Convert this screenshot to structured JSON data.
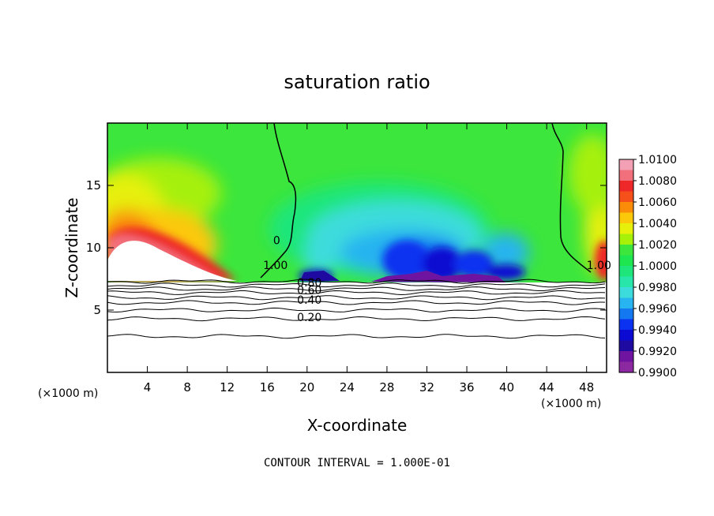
{
  "chart_data": {
    "type": "contour",
    "title": "saturation ratio",
    "xlabel": "X-coordinate",
    "ylabel": "Z-coordinate",
    "x_unit_label": "(×1000 m)",
    "x_unit_label_right": "(×1000 m)",
    "xlim": [
      0,
      50
    ],
    "ylim": [
      0,
      20
    ],
    "xticks": [
      "4",
      "8",
      "12",
      "16",
      "20",
      "24",
      "28",
      "32",
      "36",
      "40",
      "44",
      "48"
    ],
    "xtick_values": [
      4,
      8,
      12,
      16,
      20,
      24,
      28,
      32,
      36,
      40,
      44,
      48
    ],
    "yticks": [
      "5",
      "10",
      "15"
    ],
    "ytick_values": [
      5,
      10,
      15
    ],
    "note": "CONTOUR INTERVAL = 1.000E-01",
    "colorbar": {
      "labels": [
        "1.0100",
        "1.0080",
        "1.0060",
        "1.0040",
        "1.0020",
        "1.0000",
        "0.9980",
        "0.9960",
        "0.9940",
        "0.9920",
        "0.9900"
      ],
      "colors": [
        "#f4a0b4",
        "#f2707c",
        "#ee2828",
        "#f5501a",
        "#fa8c0a",
        "#fcc80a",
        "#e6f00a",
        "#a6f00a",
        "#3ce63c",
        "#1ee650",
        "#1ee67a",
        "#28e6aa",
        "#3cdcdc",
        "#28b4f0",
        "#1478f0",
        "#0a32f0",
        "#0a0ad2",
        "#1e0aa0",
        "#6e14a0",
        "#8c28a0"
      ]
    },
    "contour_labels": [
      {
        "text": "0",
        "x": 16.6,
        "y": 10.3
      },
      {
        "text": "1.00",
        "x": 15.6,
        "y": 8.3
      },
      {
        "text": "1.00",
        "x": 48.0,
        "y": 8.3
      },
      {
        "text": "0.80",
        "x": 19.0,
        "y": 6.9
      },
      {
        "text": "0.60",
        "x": 19.0,
        "y": 6.3
      },
      {
        "text": "0.40",
        "x": 19.0,
        "y": 5.5
      },
      {
        "text": "0.20",
        "x": 19.0,
        "y": 4.1
      }
    ],
    "contour_levels": [
      {
        "level": 0.9,
        "y": 7.3
      },
      {
        "level": 0.8,
        "y": 7.0
      },
      {
        "level": 0.7,
        "y": 6.7
      },
      {
        "level": 0.6,
        "y": 6.4
      },
      {
        "level": 0.5,
        "y": 6.0
      },
      {
        "level": 0.4,
        "y": 5.6
      },
      {
        "level": 0.3,
        "y": 5.0
      },
      {
        "level": 0.2,
        "y": 4.3
      },
      {
        "level": 0.1,
        "y": 2.9
      }
    ]
  }
}
